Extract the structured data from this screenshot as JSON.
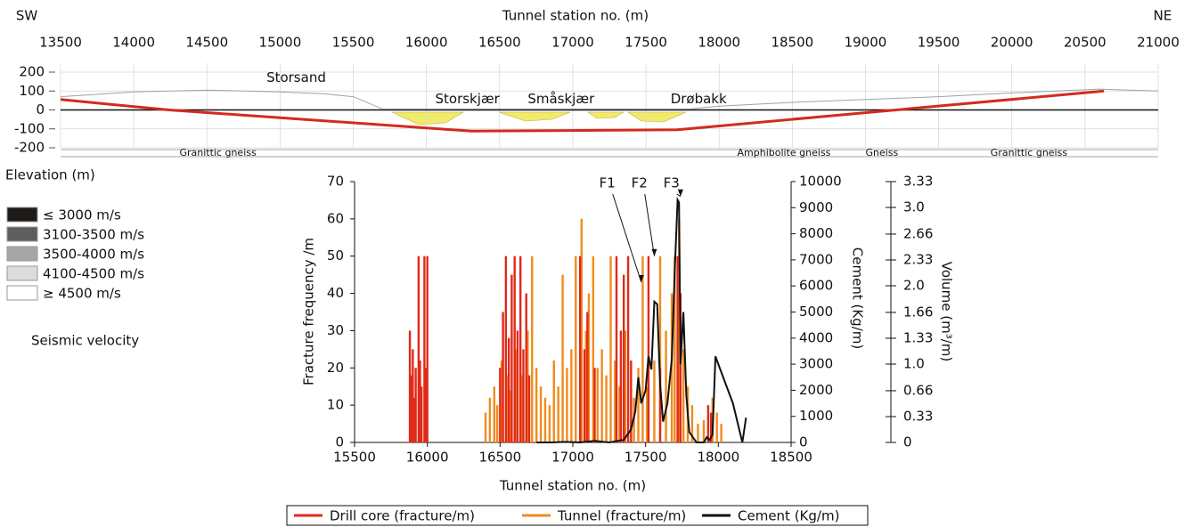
{
  "chart_data": [
    {
      "type": "line",
      "title": "Tunnel station no. (m)",
      "left_label": "SW",
      "right_label": "NE",
      "y_label": "Elevation (m)",
      "xlim": [
        13500,
        21000
      ],
      "xticks": [
        13500,
        14000,
        14500,
        15000,
        15500,
        16000,
        16500,
        17000,
        17500,
        18000,
        18500,
        19000,
        19500,
        20000,
        20500,
        21000
      ],
      "ylim": [
        -200,
        200
      ],
      "yticks": [
        200,
        100,
        0,
        -100,
        -200
      ],
      "grid": true,
      "series": [
        {
          "color": "#9aa3b0",
          "x": [
            13500,
            14000,
            14500,
            15000,
            15300,
            15500,
            15700,
            16500,
            17000,
            17800,
            18000,
            18500,
            19000,
            19500,
            20000,
            20300,
            20600,
            21000
          ],
          "values": [
            70,
            95,
            105,
            95,
            85,
            70,
            5,
            5,
            5,
            5,
            20,
            40,
            55,
            70,
            90,
            100,
            110,
            100
          ]
        },
        {
          "color": "#d42a1e",
          "x": [
            13500,
            14240,
            16310,
            17710,
            20630
          ],
          "values": [
            55,
            0,
            -112,
            -105,
            100
          ]
        }
      ],
      "annotations": [
        {
          "text": "Storsand",
          "x": 15110,
          "y": 170
        },
        {
          "text": "Storskjær",
          "x": 16280,
          "y": 56
        },
        {
          "text": "Småskjær",
          "x": 16920,
          "y": 56
        },
        {
          "text": "Drøbakk",
          "x": 17860,
          "y": 56
        }
      ],
      "rock_units": [
        {
          "text": "Granittic gneiss",
          "x": 14575
        },
        {
          "text": "Amphibolite gneiss",
          "x": 18443
        },
        {
          "text": "Gneiss",
          "x": 19112
        },
        {
          "text": "Granittic gneiss",
          "x": 20117
        }
      ]
    },
    {
      "type": "bar-line",
      "x_label": "Tunnel station no. (m)",
      "y_label": "Fracture frequency /m",
      "y2_label": "Cement (Kg/m)",
      "y3_label": "Volume (m³/m)",
      "xlim": [
        15500,
        18500
      ],
      "xticks": [
        15500,
        16000,
        16500,
        17000,
        17500,
        18000,
        18500
      ],
      "ylim": [
        0,
        70
      ],
      "yticks": [
        0,
        10,
        20,
        30,
        40,
        50,
        60,
        70
      ],
      "y2lim": [
        0,
        10000
      ],
      "y2ticks": [
        0,
        1000,
        2000,
        3000,
        4000,
        5000,
        6000,
        7000,
        8000,
        9000,
        10000
      ],
      "y3lim": [
        0,
        3.33
      ],
      "y3ticks": [
        0,
        0.33,
        0.66,
        {
          "value": 1,
          "label": "1.0"
        },
        1.33,
        1.66,
        {
          "value": 2,
          "label": "2.0"
        },
        2.33,
        2.66,
        {
          "value": 3,
          "label": "3.0"
        },
        3.33
      ],
      "series": [
        {
          "name": "Drill core (fracture/m)",
          "color": "#e02a1a",
          "kind": "bar",
          "x": [
            15880,
            15890,
            15900,
            15910,
            15920,
            15940,
            15950,
            15960,
            15980,
            15990,
            16000,
            16500,
            16520,
            16540,
            16560,
            16580,
            16600,
            16620,
            16640,
            16660,
            16680,
            16700,
            17050,
            17080,
            17100,
            17150,
            17300,
            17330,
            17350,
            17380,
            17400,
            17520,
            17600,
            17720,
            17740,
            17930,
            17950
          ],
          "values": [
            30,
            18,
            25,
            12,
            20,
            50,
            22,
            15,
            50,
            20,
            50,
            20,
            35,
            50,
            28,
            45,
            50,
            30,
            50,
            25,
            40,
            18,
            50,
            25,
            35,
            20,
            50,
            30,
            45,
            50,
            22,
            50,
            20,
            50,
            40,
            10,
            8
          ]
        },
        {
          "name": "Tunnel (fracture/m)",
          "color": "#f08c1e",
          "kind": "bar",
          "x": [
            16400,
            16430,
            16460,
            16480,
            16510,
            16550,
            16570,
            16610,
            16650,
            16690,
            16720,
            16750,
            16780,
            16810,
            16840,
            16870,
            16900,
            16930,
            16960,
            16990,
            17020,
            17060,
            17090,
            17110,
            17140,
            17170,
            17200,
            17230,
            17260,
            17290,
            17320,
            17360,
            17420,
            17450,
            17480,
            17510,
            17560,
            17600,
            17640,
            17680,
            17700,
            17730,
            17760,
            17790,
            17820,
            17860,
            17900,
            17960,
            17990,
            18020
          ],
          "values": [
            8,
            12,
            15,
            10,
            22,
            18,
            14,
            25,
            18,
            30,
            50,
            20,
            15,
            12,
            10,
            22,
            15,
            45,
            20,
            25,
            50,
            60,
            30,
            40,
            50,
            20,
            25,
            18,
            50,
            22,
            15,
            30,
            12,
            20,
            50,
            15,
            22,
            50,
            30,
            40,
            50,
            60,
            25,
            15,
            10,
            5,
            6,
            12,
            8,
            5
          ]
        },
        {
          "name": "Cement (Kg/m)",
          "color": "#111111",
          "kind": "line",
          "axis": "y2",
          "x": [
            16750,
            16850,
            16950,
            17050,
            17150,
            17250,
            17350,
            17400,
            17430,
            17450,
            17470,
            17500,
            17520,
            17540,
            17560,
            17580,
            17600,
            17620,
            17650,
            17680,
            17700,
            17720,
            17730,
            17740,
            17760,
            17780,
            17800,
            17850,
            17900,
            17920,
            17940,
            17960,
            17980,
            18000,
            18100,
            18165,
            18190
          ],
          "values": [
            0,
            0,
            20,
            0,
            60,
            0,
            100,
            500,
            1200,
            2500,
            1500,
            2000,
            3300,
            2800,
            5400,
            5300,
            2200,
            800,
            1500,
            3200,
            6500,
            9300,
            9200,
            3000,
            5000,
            1800,
            400,
            0,
            0,
            200,
            100,
            300,
            3300,
            3000,
            1500,
            0,
            950
          ]
        }
      ],
      "annotations": [
        {
          "text": "F1",
          "x": 17470,
          "y": 43
        },
        {
          "text": "F2",
          "x": 17560,
          "y": 50
        },
        {
          "text": "F3",
          "x": 17740,
          "y": 66
        }
      ]
    }
  ],
  "seismic_velocity": {
    "title": "Seismic velocity",
    "items": [
      {
        "label": "≤ 3000 m/s",
        "color": "#1e1a18"
      },
      {
        "label": "3100-3500 m/s",
        "color": "#5e5e5e"
      },
      {
        "label": "3500-4000 m/s",
        "color": "#a6a6a6"
      },
      {
        "label": "4100-4500 m/s",
        "color": "#dcdcdc"
      },
      {
        "label": "≥ 4500 m/s",
        "color": "#ffffff"
      }
    ]
  }
}
